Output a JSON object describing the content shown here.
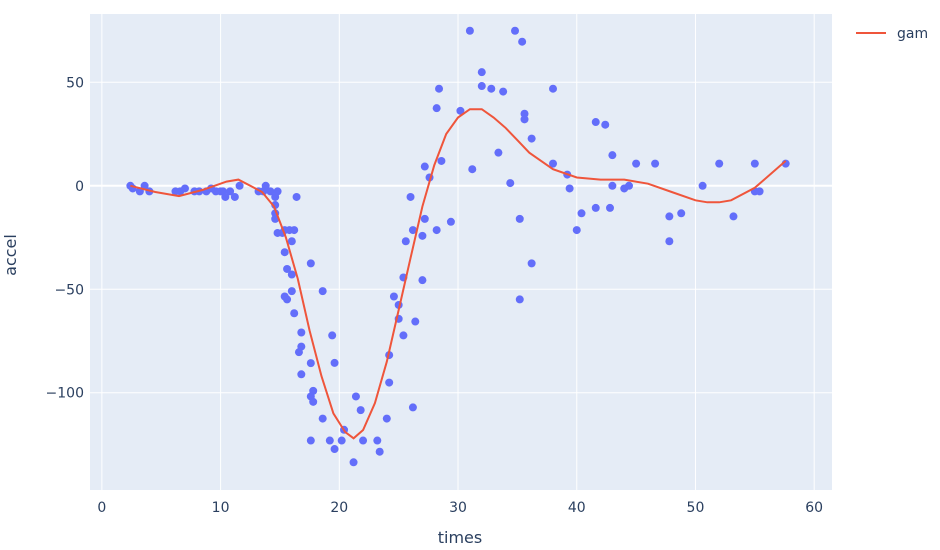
{
  "chart_data": {
    "type": "scatter",
    "xlabel": "times",
    "ylabel": "accel",
    "xlim": [
      -1,
      61.5
    ],
    "ylim": [
      -147,
      83
    ],
    "xticks": [
      0,
      10,
      20,
      30,
      40,
      50,
      60
    ],
    "yticks": [
      -100,
      -50,
      0,
      50
    ],
    "ytick_labels": [
      "−100",
      "−50",
      "0",
      "50"
    ],
    "grid": true,
    "legend_position": "top-right",
    "colors": {
      "plot_bg": "#e5ecf6",
      "grid": "#ffffff",
      "points": "#636efa",
      "line": "#ef553b"
    },
    "series": [
      {
        "mode": "markers",
        "x": [
          2.4,
          2.6,
          3.2,
          3.6,
          4.0,
          6.2,
          6.6,
          7.0,
          7.8,
          8.2,
          8.8,
          9.2,
          9.6,
          10.0,
          10.2,
          10.4,
          10.8,
          11.2,
          11.6,
          13.2,
          13.6,
          13.8,
          14.2,
          14.6,
          14.6,
          14.6,
          14.6,
          14.8,
          14.8,
          15.2,
          15.4,
          15.4,
          15.4,
          15.6,
          15.6,
          15.8,
          16.0,
          16.0,
          16.0,
          16.2,
          16.2,
          16.4,
          16.6,
          16.8,
          16.8,
          16.8,
          17.6,
          17.6,
          17.6,
          17.6,
          17.8,
          17.8,
          18.6,
          18.6,
          19.2,
          19.4,
          19.6,
          19.6,
          20.2,
          20.4,
          21.2,
          21.4,
          21.8,
          22.0,
          23.2,
          23.4,
          24.0,
          24.2,
          24.2,
          24.6,
          25.0,
          25.0,
          25.4,
          25.4,
          25.6,
          26.0,
          26.2,
          26.2,
          26.4,
          27.0,
          27.0,
          27.2,
          27.2,
          27.6,
          28.2,
          28.2,
          28.4,
          28.6,
          29.4,
          30.2,
          31.0,
          31.2,
          32.0,
          32.0,
          32.8,
          33.4,
          33.8,
          34.4,
          34.8,
          35.2,
          35.2,
          35.4,
          35.6,
          35.6,
          36.2,
          36.2,
          38.0,
          38.0,
          39.2,
          39.4,
          40.0,
          40.4,
          41.6,
          41.6,
          42.4,
          42.8,
          43.0,
          43.0,
          44.0,
          44.4,
          45.0,
          46.6,
          47.8,
          47.8,
          48.8,
          50.6,
          52.0,
          53.2,
          55.0,
          55.0,
          55.4,
          57.6
        ],
        "y": [
          0,
          -1.3,
          -2.7,
          0,
          -2.7,
          -2.7,
          -2.7,
          -1.3,
          -2.7,
          -2.7,
          -2.7,
          -1.3,
          -2.7,
          -2.7,
          -2.7,
          -5.4,
          -2.7,
          -5.4,
          0,
          -2.7,
          -2.7,
          0,
          -2.7,
          -5.4,
          -9.3,
          -13.3,
          -16.0,
          -22.8,
          -2.7,
          -22.8,
          -32.1,
          -53.5,
          -21.4,
          -54.9,
          -40.2,
          -21.4,
          -50.9,
          -26.8,
          -42.9,
          -61.6,
          -21.4,
          -5.4,
          -80.4,
          -77.7,
          -70.9,
          -91.1,
          -37.5,
          -85.7,
          -123.1,
          -101.8,
          -99.1,
          -104.4,
          -50.9,
          -112.5,
          -123.1,
          -72.3,
          -127.2,
          -85.6,
          -123.1,
          -117.9,
          -133.6,
          -101.8,
          -108.4,
          -123.1,
          -123.1,
          -128.5,
          -112.5,
          -95.1,
          -81.8,
          -53.5,
          -64.3,
          -57.6,
          -44.3,
          -72.3,
          -26.8,
          -5.4,
          -21.4,
          -107.1,
          -65.6,
          -45.6,
          -24.2,
          9.3,
          -16.0,
          4.0,
          -21.4,
          37.5,
          46.9,
          12.0,
          -17.4,
          36.2,
          74.9,
          8.0,
          48.2,
          54.9,
          46.9,
          16.0,
          45.5,
          1.3,
          74.9,
          -16.0,
          -54.9,
          69.6,
          34.8,
          32.1,
          -37.5,
          22.8,
          10.7,
          46.9,
          5.4,
          -1.3,
          -21.4,
          -13.3,
          -10.7,
          30.8,
          29.5,
          -10.7,
          0,
          14.8,
          -1.3,
          0,
          10.7,
          10.7,
          -26.8,
          -14.8,
          -13.3,
          0,
          10.7,
          -14.8,
          10.7,
          -2.7,
          -2.7,
          10.7
        ]
      },
      {
        "mode": "lines",
        "name": "gam",
        "x": [
          2.4,
          4.5,
          6.5,
          8.5,
          10.5,
          11.5,
          12.5,
          13.5,
          14.5,
          15.5,
          16.5,
          17.5,
          18.5,
          19.5,
          20.5,
          21.2,
          22,
          23,
          24,
          25,
          26,
          27,
          28,
          29,
          30,
          31,
          32,
          33,
          34,
          35,
          36,
          37,
          38,
          40,
          42,
          44,
          46,
          48,
          50,
          51,
          52,
          53,
          55,
          57.6
        ],
        "y": [
          0,
          -3,
          -5,
          -2,
          2,
          3,
          0,
          -3,
          -10,
          -25,
          -45,
          -70,
          -92,
          -110,
          -119,
          -122,
          -118,
          -105,
          -85,
          -60,
          -35,
          -10,
          10,
          25,
          33,
          37,
          37,
          33,
          28,
          22,
          16,
          12,
          8,
          4,
          3,
          3,
          1,
          -3,
          -7,
          -8,
          -8,
          -7,
          -1,
          12
        ]
      }
    ]
  }
}
